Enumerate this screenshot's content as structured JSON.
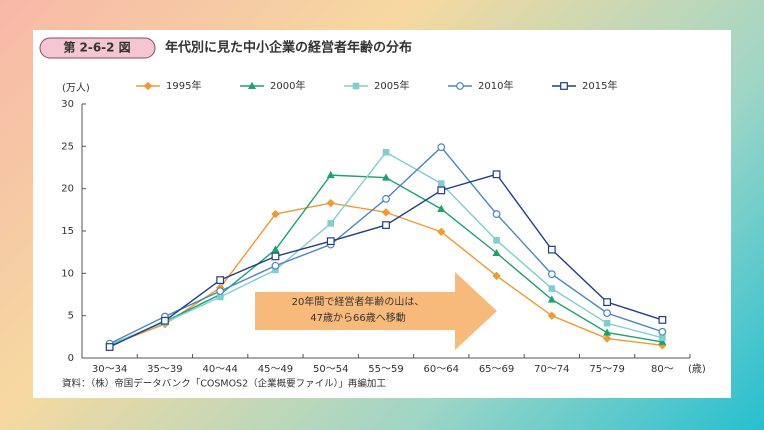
{
  "chart_data": {
    "type": "line",
    "figure_label": "第 2-6-2 図",
    "title": "年代別に見た中小企業の経営者年齢の分布",
    "y_label": "(万人)",
    "x_label": "(歳)",
    "categories": [
      "30～34",
      "35～39",
      "40～44",
      "45～49",
      "50～54",
      "55～59",
      "60～64",
      "65～69",
      "70～74",
      "75～79",
      "80～"
    ],
    "series": [
      {
        "name": "1995年",
        "color": "#f39a2e",
        "marker": "diamond",
        "values": [
          1.5,
          4.0,
          8.3,
          17.0,
          18.3,
          17.2,
          14.9,
          9.7,
          5.0,
          2.3,
          1.5
        ]
      },
      {
        "name": "2000年",
        "color": "#1aa36d",
        "marker": "triangle",
        "values": [
          1.5,
          4.3,
          7.5,
          12.8,
          21.6,
          21.3,
          17.6,
          12.4,
          6.9,
          3.0,
          1.9
        ]
      },
      {
        "name": "2005年",
        "color": "#7fcfd0",
        "marker": "square",
        "values": [
          1.6,
          4.2,
          7.2,
          10.4,
          15.9,
          24.3,
          20.6,
          13.9,
          8.2,
          4.1,
          2.4
        ]
      },
      {
        "name": "2010年",
        "color": "#4a86c5",
        "marker": "open-circle",
        "values": [
          1.7,
          4.9,
          7.9,
          10.9,
          13.4,
          18.8,
          24.9,
          17.0,
          9.9,
          5.3,
          3.1
        ]
      },
      {
        "name": "2015年",
        "color": "#1f3f8c",
        "marker": "open-square",
        "values": [
          1.3,
          4.4,
          9.2,
          12.0,
          13.8,
          15.7,
          19.8,
          21.7,
          12.8,
          6.6,
          4.5
        ]
      }
    ],
    "ylim": [
      0,
      30
    ],
    "yticks": [
      0,
      5,
      10,
      15,
      20,
      25,
      30
    ],
    "grid": false,
    "annotation": [
      "20年間で経営者年齢の山は、",
      "47歳から66歳へ移動"
    ],
    "source": "資料：（株）帝国データバンク「COSMOS2（企業概要ファイル）」再編加工"
  }
}
